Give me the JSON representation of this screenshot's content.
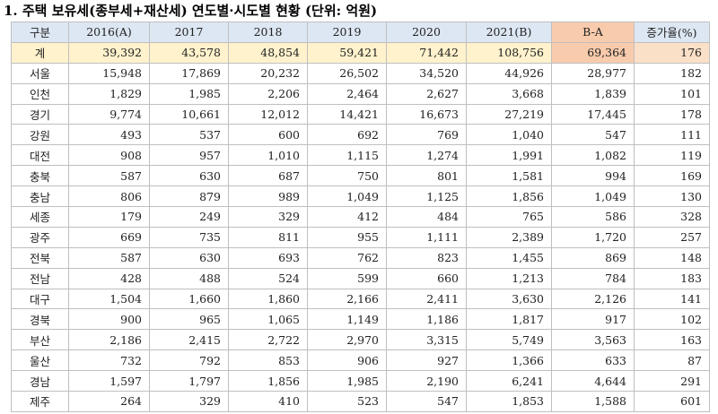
{
  "title": "1. 주택 보유세(종부세+재산세) 연도별·시도별 현황 (단위: 억원)",
  "table": {
    "header": [
      "구분",
      "2016(A)",
      "2017",
      "2018",
      "2019",
      "2020",
      "2021(B)",
      "B-A",
      "증가율(%)"
    ],
    "rows": [
      [
        "계",
        "39,392",
        "43,578",
        "48,854",
        "59,421",
        "71,442",
        "108,756",
        "69,364",
        "176"
      ],
      [
        "서울",
        "15,948",
        "17,869",
        "20,232",
        "26,502",
        "34,520",
        "44,926",
        "28,977",
        "182"
      ],
      [
        "인천",
        "1,829",
        "1,985",
        "2,206",
        "2,464",
        "2,627",
        "3,668",
        "1,839",
        "101"
      ],
      [
        "경기",
        "9,774",
        "10,661",
        "12,012",
        "14,421",
        "16,673",
        "27,219",
        "17,445",
        "178"
      ],
      [
        "강원",
        "493",
        "537",
        "600",
        "692",
        "769",
        "1,040",
        "547",
        "111"
      ],
      [
        "대전",
        "908",
        "957",
        "1,010",
        "1,115",
        "1,274",
        "1,991",
        "1,082",
        "119"
      ],
      [
        "충북",
        "587",
        "630",
        "687",
        "750",
        "801",
        "1,581",
        "994",
        "169"
      ],
      [
        "충남",
        "806",
        "879",
        "989",
        "1,049",
        "1,125",
        "1,856",
        "1,049",
        "130"
      ],
      [
        "세종",
        "179",
        "249",
        "329",
        "412",
        "484",
        "765",
        "586",
        "328"
      ],
      [
        "광주",
        "669",
        "735",
        "811",
        "955",
        "1,111",
        "2,389",
        "1,720",
        "257"
      ],
      [
        "전북",
        "587",
        "630",
        "693",
        "762",
        "823",
        "1,455",
        "869",
        "148"
      ],
      [
        "전남",
        "428",
        "488",
        "524",
        "599",
        "660",
        "1,213",
        "784",
        "183"
      ],
      [
        "대구",
        "1,504",
        "1,660",
        "1,860",
        "2,166",
        "2,411",
        "3,630",
        "2,126",
        "141"
      ],
      [
        "경북",
        "900",
        "965",
        "1,065",
        "1,149",
        "1,186",
        "1,817",
        "917",
        "102"
      ],
      [
        "부산",
        "2,186",
        "2,415",
        "2,722",
        "2,970",
        "3,315",
        "5,749",
        "3,563",
        "163"
      ],
      [
        "울산",
        "732",
        "792",
        "853",
        "906",
        "927",
        "1,366",
        "633",
        "87"
      ],
      [
        "경남",
        "1,597",
        "1,797",
        "1,856",
        "1,985",
        "2,190",
        "6,241",
        "4,644",
        "291"
      ],
      [
        "제주",
        "264",
        "329",
        "410",
        "523",
        "547",
        "1,853",
        "1,588",
        "601"
      ]
    ]
  }
}
